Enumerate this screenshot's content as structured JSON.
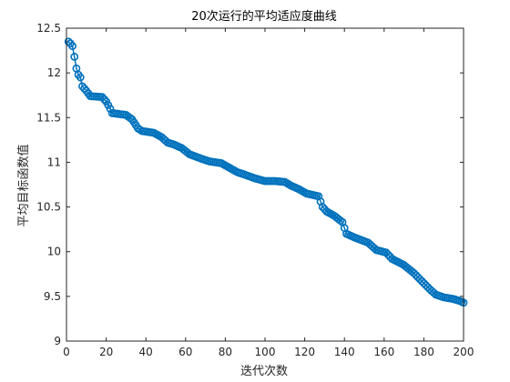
{
  "chart_data": {
    "type": "line",
    "title": "20次运行的平均适应度曲线",
    "xlabel": "迭代次数",
    "ylabel": "平均目标函数值",
    "xlim": [
      0,
      200
    ],
    "ylim": [
      9,
      12.5
    ],
    "xticks": [
      0,
      20,
      40,
      60,
      80,
      100,
      120,
      140,
      160,
      180,
      200
    ],
    "yticks": [
      9,
      9.5,
      10,
      10.5,
      11,
      11.5,
      12,
      12.5
    ],
    "ytick_labels": [
      "9",
      "9.5",
      "10",
      "10.5",
      "11",
      "11.5",
      "12",
      "12.5"
    ],
    "grid": false,
    "legend": "none",
    "marker": "o",
    "color": "#0072BD",
    "series": [
      {
        "keyframes": [
          [
            1,
            12.35
          ],
          [
            2,
            12.33
          ],
          [
            3,
            12.3
          ],
          [
            4,
            12.18
          ],
          [
            5,
            12.05
          ],
          [
            6,
            11.98
          ],
          [
            7,
            11.95
          ],
          [
            8,
            11.85
          ],
          [
            10,
            11.8
          ],
          [
            12,
            11.74
          ],
          [
            18,
            11.73
          ],
          [
            20,
            11.68
          ],
          [
            22,
            11.6
          ],
          [
            23,
            11.55
          ],
          [
            30,
            11.53
          ],
          [
            33,
            11.48
          ],
          [
            36,
            11.38
          ],
          [
            38,
            11.35
          ],
          [
            44,
            11.33
          ],
          [
            48,
            11.28
          ],
          [
            51,
            11.22
          ],
          [
            54,
            11.2
          ],
          [
            58,
            11.16
          ],
          [
            62,
            11.09
          ],
          [
            68,
            11.04
          ],
          [
            72,
            11.01
          ],
          [
            78,
            10.99
          ],
          [
            82,
            10.94
          ],
          [
            86,
            10.89
          ],
          [
            90,
            10.86
          ],
          [
            95,
            10.82
          ],
          [
            100,
            10.79
          ],
          [
            105,
            10.79
          ],
          [
            110,
            10.78
          ],
          [
            113,
            10.74
          ],
          [
            117,
            10.7
          ],
          [
            121,
            10.65
          ],
          [
            127,
            10.62
          ],
          [
            129,
            10.5
          ],
          [
            131,
            10.45
          ],
          [
            135,
            10.4
          ],
          [
            139,
            10.33
          ],
          [
            141,
            10.2
          ],
          [
            145,
            10.16
          ],
          [
            152,
            10.1
          ],
          [
            156,
            10.02
          ],
          [
            161,
            9.99
          ],
          [
            164,
            9.92
          ],
          [
            170,
            9.85
          ],
          [
            175,
            9.76
          ],
          [
            179,
            9.67
          ],
          [
            183,
            9.58
          ],
          [
            186,
            9.52
          ],
          [
            190,
            9.49
          ],
          [
            195,
            9.47
          ],
          [
            198,
            9.45
          ],
          [
            200,
            9.43
          ]
        ]
      }
    ]
  }
}
